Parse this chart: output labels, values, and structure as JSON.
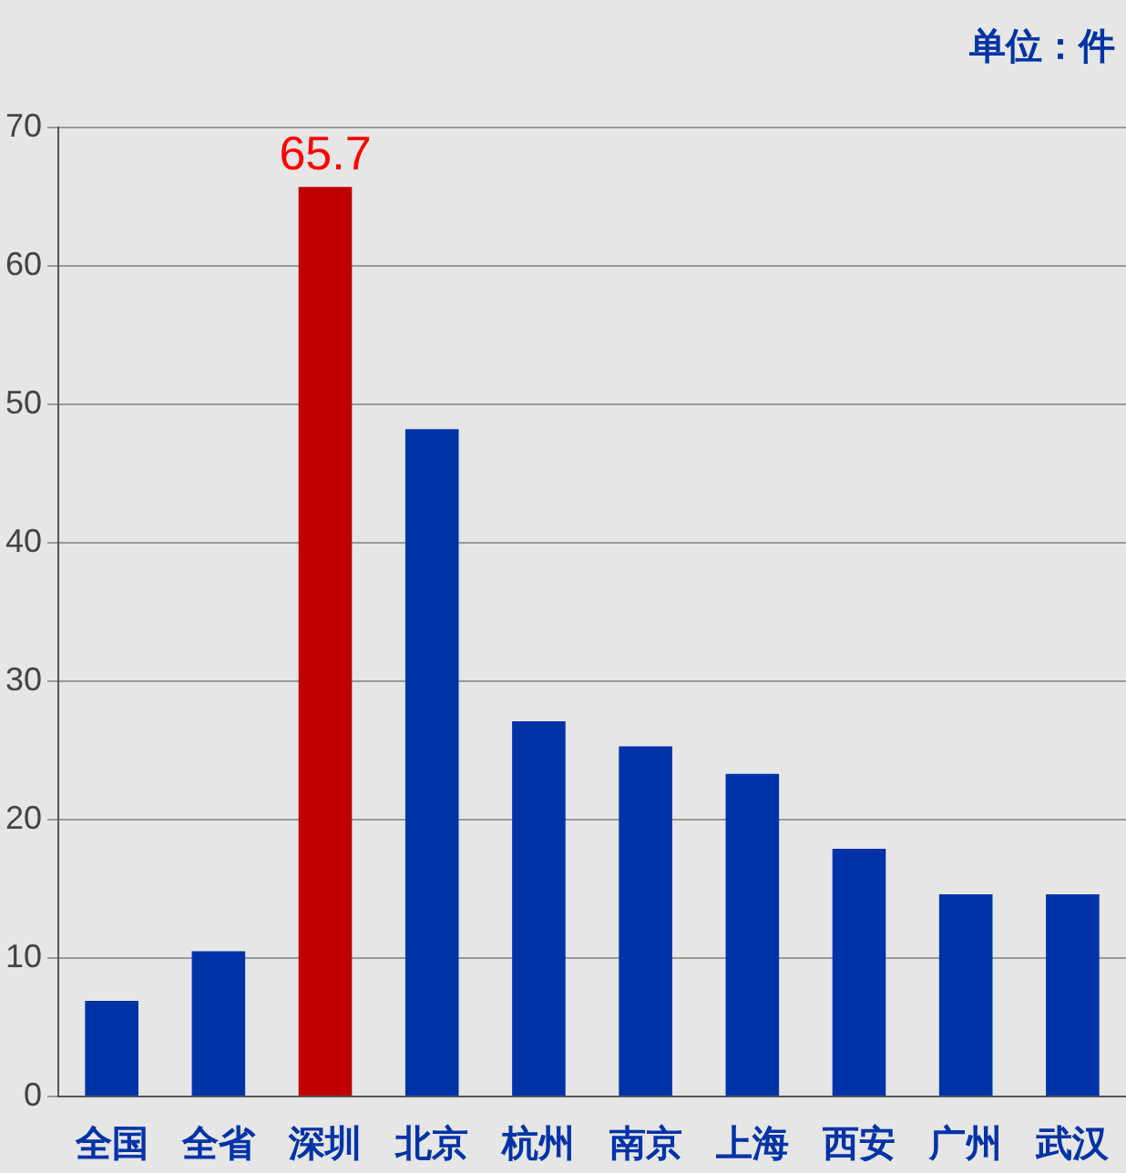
{
  "chart_data": {
    "type": "bar",
    "subtitle": "单位：件",
    "categories": [
      "全国",
      "全省",
      "深圳",
      "北京",
      "杭州",
      "南京",
      "上海",
      "西安",
      "广州",
      "武汉"
    ],
    "values": [
      6.9,
      10.5,
      65.7,
      48.2,
      27.1,
      25.3,
      23.3,
      17.9,
      14.6,
      14.6
    ],
    "colors": [
      "#0033a8",
      "#0033a8",
      "#c00000",
      "#0033a8",
      "#0033a8",
      "#0033a8",
      "#0033a8",
      "#0033a8",
      "#0033a8",
      "#0033a8"
    ],
    "value_labels": [
      null,
      null,
      "65.7",
      null,
      null,
      null,
      null,
      null,
      null,
      null
    ],
    "ylim": [
      0,
      70
    ],
    "yticks": [
      0,
      10,
      20,
      30,
      40,
      50,
      60,
      70
    ],
    "grid": "y",
    "legend": false
  }
}
